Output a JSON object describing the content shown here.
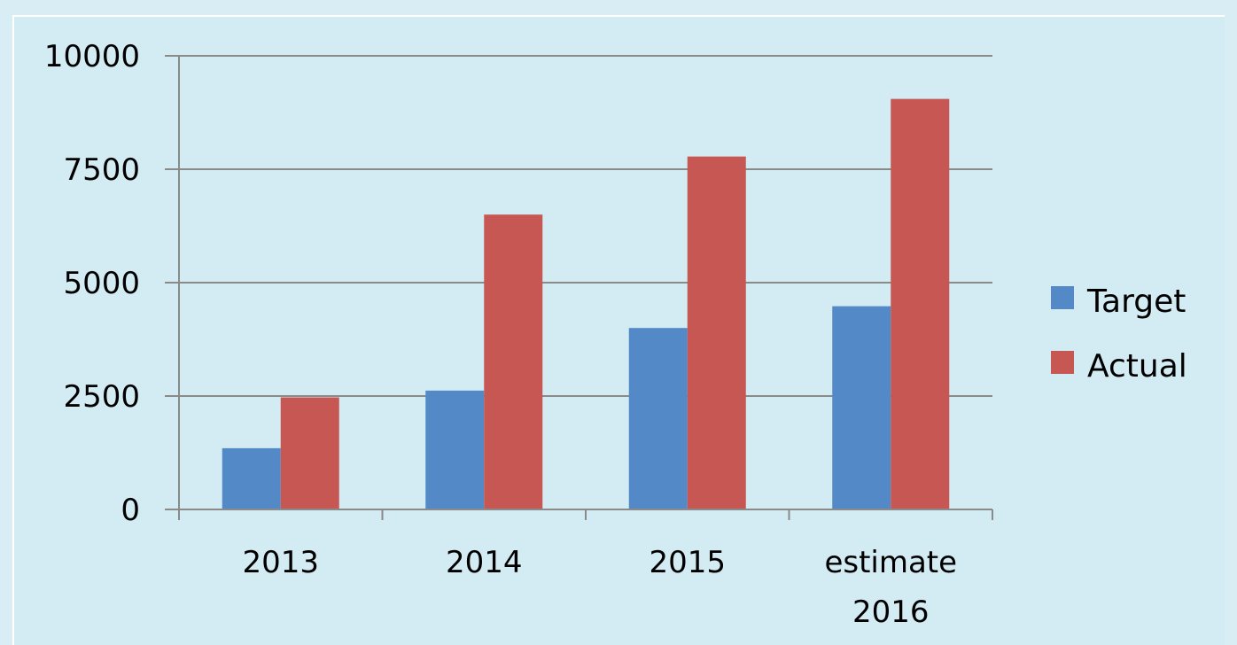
{
  "colors": {
    "background": "#d3ebf2",
    "outer_background": "#d8eef4",
    "target": "#5289c6",
    "actual": "#c65753",
    "gridline": "#8a8a8a"
  },
  "chart_data": {
    "type": "bar",
    "categories": [
      "2013",
      "2014",
      "2015",
      "estimate 2016"
    ],
    "category_labels": [
      [
        "2013"
      ],
      [
        "2014"
      ],
      [
        "2015"
      ],
      [
        "estimate",
        "2016"
      ]
    ],
    "series": [
      {
        "name": "Target",
        "values": [
          1350,
          2620,
          4000,
          4480
        ],
        "color": "#5289c6"
      },
      {
        "name": "Actual",
        "values": [
          2470,
          6500,
          7780,
          9050
        ],
        "color": "#c65753"
      }
    ],
    "y_ticks": [
      "0",
      "2500",
      "5000",
      "7500",
      "10000"
    ],
    "ylim": [
      0,
      10000
    ],
    "grid": true,
    "legend_position": "right"
  }
}
